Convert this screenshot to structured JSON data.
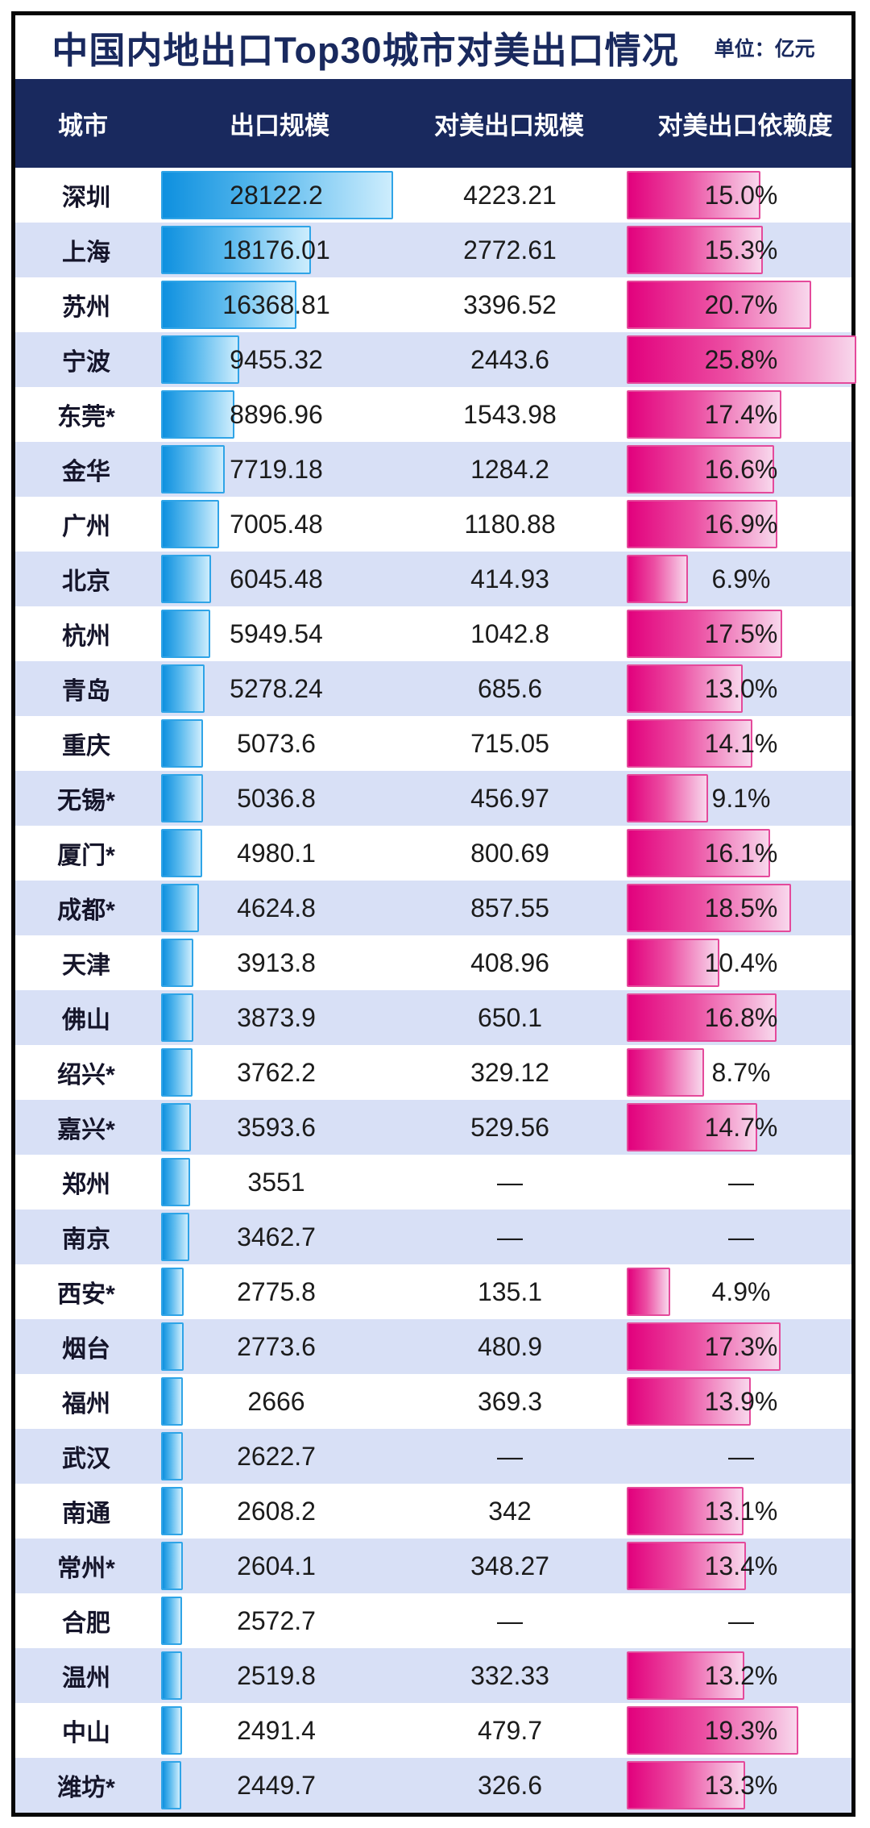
{
  "title": "中国内地出口Top30城市对美出口情况",
  "unit_label": "单位：亿元",
  "header": {
    "columns": [
      "城市",
      "出口规模",
      "对美出口规模",
      "对美出口依赖度"
    ]
  },
  "missing_placeholder": "—",
  "colors": {
    "navy": "#19295E",
    "row_alt": "#D8E0F6",
    "blue_bar_start": "#0E90DF",
    "blue_bar_end": "#CDEDFD",
    "blue_bar_border": "#2FA4E7",
    "pink_bar_start": "#E2017D",
    "pink_bar_end": "#F8D7EC",
    "pink_bar_border": "#E44A9B",
    "frame_border": "#060606"
  },
  "table": {
    "rows": [
      {
        "city": "深圳",
        "export_label": "28122.2",
        "us_export_label": "4223.21",
        "dependency_label": "15.0%",
        "export_value": 28122.2,
        "dependency_value": 15.0
      },
      {
        "city": "上海",
        "export_label": "18176.01",
        "us_export_label": "2772.61",
        "dependency_label": "15.3%",
        "export_value": 18176.01,
        "dependency_value": 15.3
      },
      {
        "city": "苏州",
        "export_label": "16368.81",
        "us_export_label": "3396.52",
        "dependency_label": "20.7%",
        "export_value": 16368.81,
        "dependency_value": 20.7
      },
      {
        "city": "宁波",
        "export_label": "9455.32",
        "us_export_label": "2443.6",
        "dependency_label": "25.8%",
        "export_value": 9455.32,
        "dependency_value": 25.8
      },
      {
        "city": "东莞*",
        "export_label": "8896.96",
        "us_export_label": "1543.98",
        "dependency_label": "17.4%",
        "export_value": 8896.96,
        "dependency_value": 17.4
      },
      {
        "city": "金华",
        "export_label": "7719.18",
        "us_export_label": "1284.2",
        "dependency_label": "16.6%",
        "export_value": 7719.18,
        "dependency_value": 16.6
      },
      {
        "city": "广州",
        "export_label": "7005.48",
        "us_export_label": "1180.88",
        "dependency_label": "16.9%",
        "export_value": 7005.48,
        "dependency_value": 16.9
      },
      {
        "city": "北京",
        "export_label": "6045.48",
        "us_export_label": "414.93",
        "dependency_label": "6.9%",
        "export_value": 6045.48,
        "dependency_value": 6.9
      },
      {
        "city": "杭州",
        "export_label": "5949.54",
        "us_export_label": "1042.8",
        "dependency_label": "17.5%",
        "export_value": 5949.54,
        "dependency_value": 17.5
      },
      {
        "city": "青岛",
        "export_label": "5278.24",
        "us_export_label": "685.6",
        "dependency_label": "13.0%",
        "export_value": 5278.24,
        "dependency_value": 13.0
      },
      {
        "city": "重庆",
        "export_label": "5073.6",
        "us_export_label": "715.05",
        "dependency_label": "14.1%",
        "export_value": 5073.6,
        "dependency_value": 14.1
      },
      {
        "city": "无锡*",
        "export_label": "5036.8",
        "us_export_label": "456.97",
        "dependency_label": "9.1%",
        "export_value": 5036.8,
        "dependency_value": 9.1
      },
      {
        "city": "厦门*",
        "export_label": "4980.1",
        "us_export_label": "800.69",
        "dependency_label": "16.1%",
        "export_value": 4980.1,
        "dependency_value": 16.1
      },
      {
        "city": "成都*",
        "export_label": "4624.8",
        "us_export_label": "857.55",
        "dependency_label": "18.5%",
        "export_value": 4624.8,
        "dependency_value": 18.5
      },
      {
        "city": "天津",
        "export_label": "3913.8",
        "us_export_label": "408.96",
        "dependency_label": "10.4%",
        "export_value": 3913.8,
        "dependency_value": 10.4
      },
      {
        "city": "佛山",
        "export_label": "3873.9",
        "us_export_label": "650.1",
        "dependency_label": "16.8%",
        "export_value": 3873.9,
        "dependency_value": 16.8
      },
      {
        "city": "绍兴*",
        "export_label": "3762.2",
        "us_export_label": "329.12",
        "dependency_label": "8.7%",
        "export_value": 3762.2,
        "dependency_value": 8.7
      },
      {
        "city": "嘉兴*",
        "export_label": "3593.6",
        "us_export_label": "529.56",
        "dependency_label": "14.7%",
        "export_value": 3593.6,
        "dependency_value": 14.7
      },
      {
        "city": "郑州",
        "export_label": "3551",
        "us_export_label": "—",
        "dependency_label": "—",
        "export_value": 3551,
        "dependency_value": null
      },
      {
        "city": "南京",
        "export_label": "3462.7",
        "us_export_label": "—",
        "dependency_label": "—",
        "export_value": 3462.7,
        "dependency_value": null
      },
      {
        "city": "西安*",
        "export_label": "2775.8",
        "us_export_label": "135.1",
        "dependency_label": "4.9%",
        "export_value": 2775.8,
        "dependency_value": 4.9
      },
      {
        "city": "烟台",
        "export_label": "2773.6",
        "us_export_label": "480.9",
        "dependency_label": "17.3%",
        "export_value": 2773.6,
        "dependency_value": 17.3
      },
      {
        "city": "福州",
        "export_label": "2666",
        "us_export_label": "369.3",
        "dependency_label": "13.9%",
        "export_value": 2666,
        "dependency_value": 13.9
      },
      {
        "city": "武汉",
        "export_label": "2622.7",
        "us_export_label": "—",
        "dependency_label": "—",
        "export_value": 2622.7,
        "dependency_value": null
      },
      {
        "city": "南通",
        "export_label": "2608.2",
        "us_export_label": "342",
        "dependency_label": "13.1%",
        "export_value": 2608.2,
        "dependency_value": 13.1
      },
      {
        "city": "常州*",
        "export_label": "2604.1",
        "us_export_label": "348.27",
        "dependency_label": "13.4%",
        "export_value": 2604.1,
        "dependency_value": 13.4
      },
      {
        "city": "合肥",
        "export_label": "2572.7",
        "us_export_label": "—",
        "dependency_label": "—",
        "export_value": 2572.7,
        "dependency_value": null
      },
      {
        "city": "温州",
        "export_label": "2519.8",
        "us_export_label": "332.33",
        "dependency_label": "13.2%",
        "export_value": 2519.8,
        "dependency_value": 13.2
      },
      {
        "city": "中山",
        "export_label": "2491.4",
        "us_export_label": "479.7",
        "dependency_label": "19.3%",
        "export_value": 2491.4,
        "dependency_value": 19.3
      },
      {
        "city": "潍坊*",
        "export_label": "2449.7",
        "us_export_label": "326.6",
        "dependency_label": "13.3%",
        "export_value": 2449.7,
        "dependency_value": 13.3
      }
    ]
  },
  "chart_data": {
    "type": "bar",
    "orientation": "horizontal",
    "title": "中国内地出口Top30城市对美出口情况",
    "unit": "亿元",
    "legend_position": "none",
    "missing_value_display": "—",
    "categories": [
      "深圳",
      "上海",
      "苏州",
      "宁波",
      "东莞*",
      "金华",
      "广州",
      "北京",
      "杭州",
      "青岛",
      "重庆",
      "无锡*",
      "厦门*",
      "成都*",
      "天津",
      "佛山",
      "绍兴*",
      "嘉兴*",
      "郑州",
      "南京",
      "西安*",
      "烟台",
      "福州",
      "武汉",
      "南通",
      "常州*",
      "合肥",
      "温州",
      "中山",
      "潍坊*"
    ],
    "series": [
      {
        "name": "出口规模",
        "unit": "亿元",
        "values": [
          28122.2,
          18176.01,
          16368.81,
          9455.32,
          8896.96,
          7719.18,
          7005.48,
          6045.48,
          5949.54,
          5278.24,
          5073.6,
          5036.8,
          4980.1,
          4624.8,
          3913.8,
          3873.9,
          3762.2,
          3593.6,
          3551,
          3462.7,
          2775.8,
          2773.6,
          2666,
          2622.7,
          2608.2,
          2604.1,
          2572.7,
          2519.8,
          2491.4,
          2449.7
        ]
      },
      {
        "name": "对美出口规模",
        "unit": "亿元",
        "values": [
          4223.21,
          2772.61,
          3396.52,
          2443.6,
          1543.98,
          1284.2,
          1180.88,
          414.93,
          1042.8,
          685.6,
          715.05,
          456.97,
          800.69,
          857.55,
          408.96,
          650.1,
          329.12,
          529.56,
          null,
          null,
          135.1,
          480.9,
          369.3,
          null,
          342,
          348.27,
          null,
          332.33,
          479.7,
          326.6
        ]
      },
      {
        "name": "对美出口依赖度",
        "unit": "%",
        "values": [
          15.0,
          15.3,
          20.7,
          25.8,
          17.4,
          16.6,
          16.9,
          6.9,
          17.5,
          13.0,
          14.1,
          9.1,
          16.1,
          18.5,
          10.4,
          16.8,
          8.7,
          14.7,
          null,
          null,
          4.9,
          17.3,
          13.9,
          null,
          13.1,
          13.4,
          null,
          13.2,
          19.3,
          13.3
        ]
      }
    ],
    "bar_scale": {
      "export_max": 28122.2,
      "dependency_max_pct": 25.8
    }
  }
}
